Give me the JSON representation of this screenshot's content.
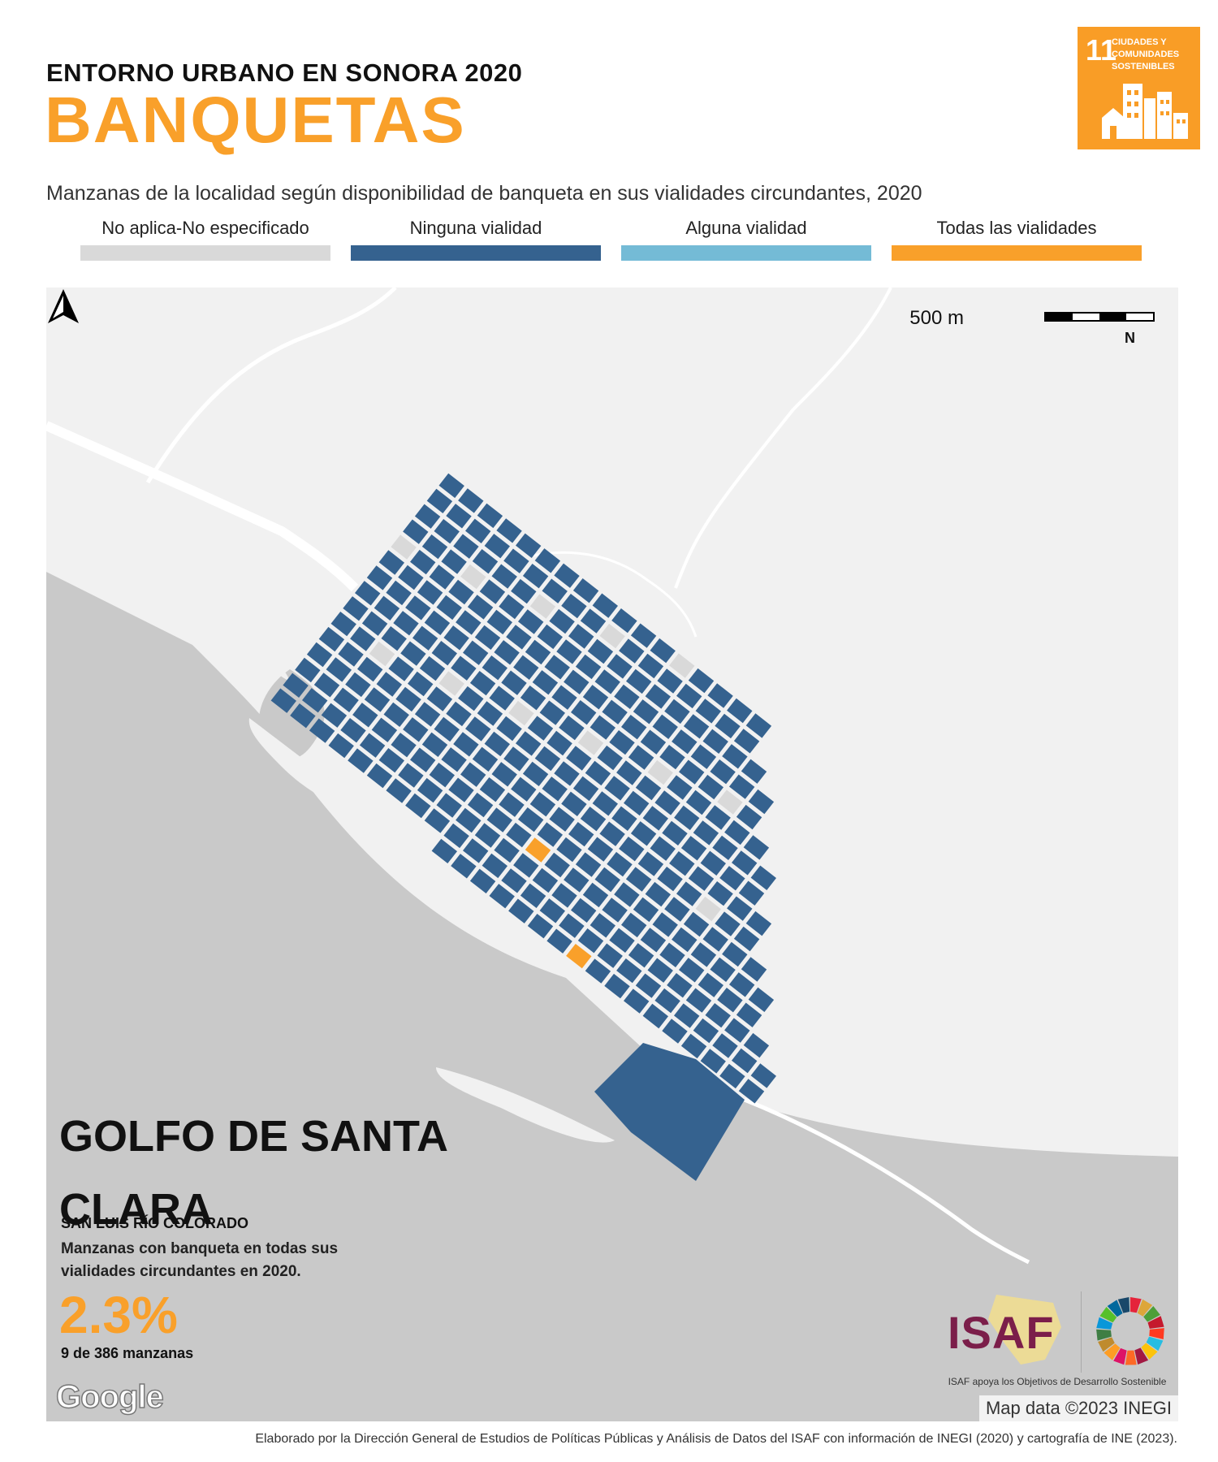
{
  "header": {
    "supertitle": "ENTORNO URBANO EN SONORA 2020",
    "title": "BANQUETAS",
    "subtitle": "Manzanas de la localidad según disponibilidad de banqueta en sus vialidades circundantes, 2020"
  },
  "legend": [
    {
      "label": "No aplica-No especificado",
      "color": "#d9d9d9"
    },
    {
      "label": "Ninguna vialidad",
      "color": "#35628f"
    },
    {
      "label": "Alguna vialidad",
      "color": "#74bbd6"
    },
    {
      "label": "Todas las vialidades",
      "color": "#f9a02a"
    }
  ],
  "sdg": {
    "number": "11",
    "text": "CIUDADES Y COMUNIDADES SOSTENIBLES",
    "color": "#f99d26"
  },
  "map": {
    "scale_label": "500 m",
    "north": "N",
    "place_name": "GOLFO DE SANTA CLARA",
    "municipality": "SAN LUIS RÍO COLORADO",
    "stat_desc": "Manzanas con banqueta en todas sus vialidades circundantes en 2020.",
    "stat_value": "2.3%",
    "stat_sub": "9 de 386 manzanas",
    "google": "Google",
    "attribution": "Map data ©2023 INEGI",
    "colors": {
      "land": "#f1f1f1",
      "sea": "#c9c9c9",
      "road": "#ffffff"
    }
  },
  "logos": {
    "isaf": "ISAF",
    "tagline": "ISAF apoya los Objetivos de Desarrollo Sostenible"
  },
  "footer": "Elaborado por la Dirección General de Estudios de Políticas Públicas y Análisis de Datos del ISAF con información de INEGI (2020) y cartografía de INE (2023)."
}
